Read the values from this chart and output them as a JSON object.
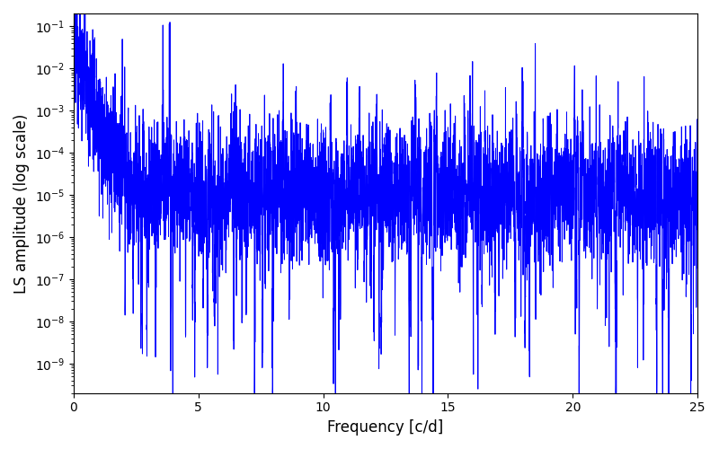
{
  "title": "",
  "xlabel": "Frequency [c/d]",
  "ylabel": "LS amplitude (log scale)",
  "xlim": [
    0,
    25
  ],
  "ylim_log": [
    -9.7,
    -0.7
  ],
  "line_color": "#0000ff",
  "line_width": 0.7,
  "yscale": "log",
  "figsize": [
    8.0,
    5.0
  ],
  "dpi": 100,
  "background_color": "#ffffff",
  "freq_max": 25.0,
  "n_points": 5000,
  "seed": 12345,
  "deep_spike_freq": 16.2,
  "deep_spike_val": -9.6,
  "second_spike_freq": 20.1,
  "second_spike_val": -8.3
}
